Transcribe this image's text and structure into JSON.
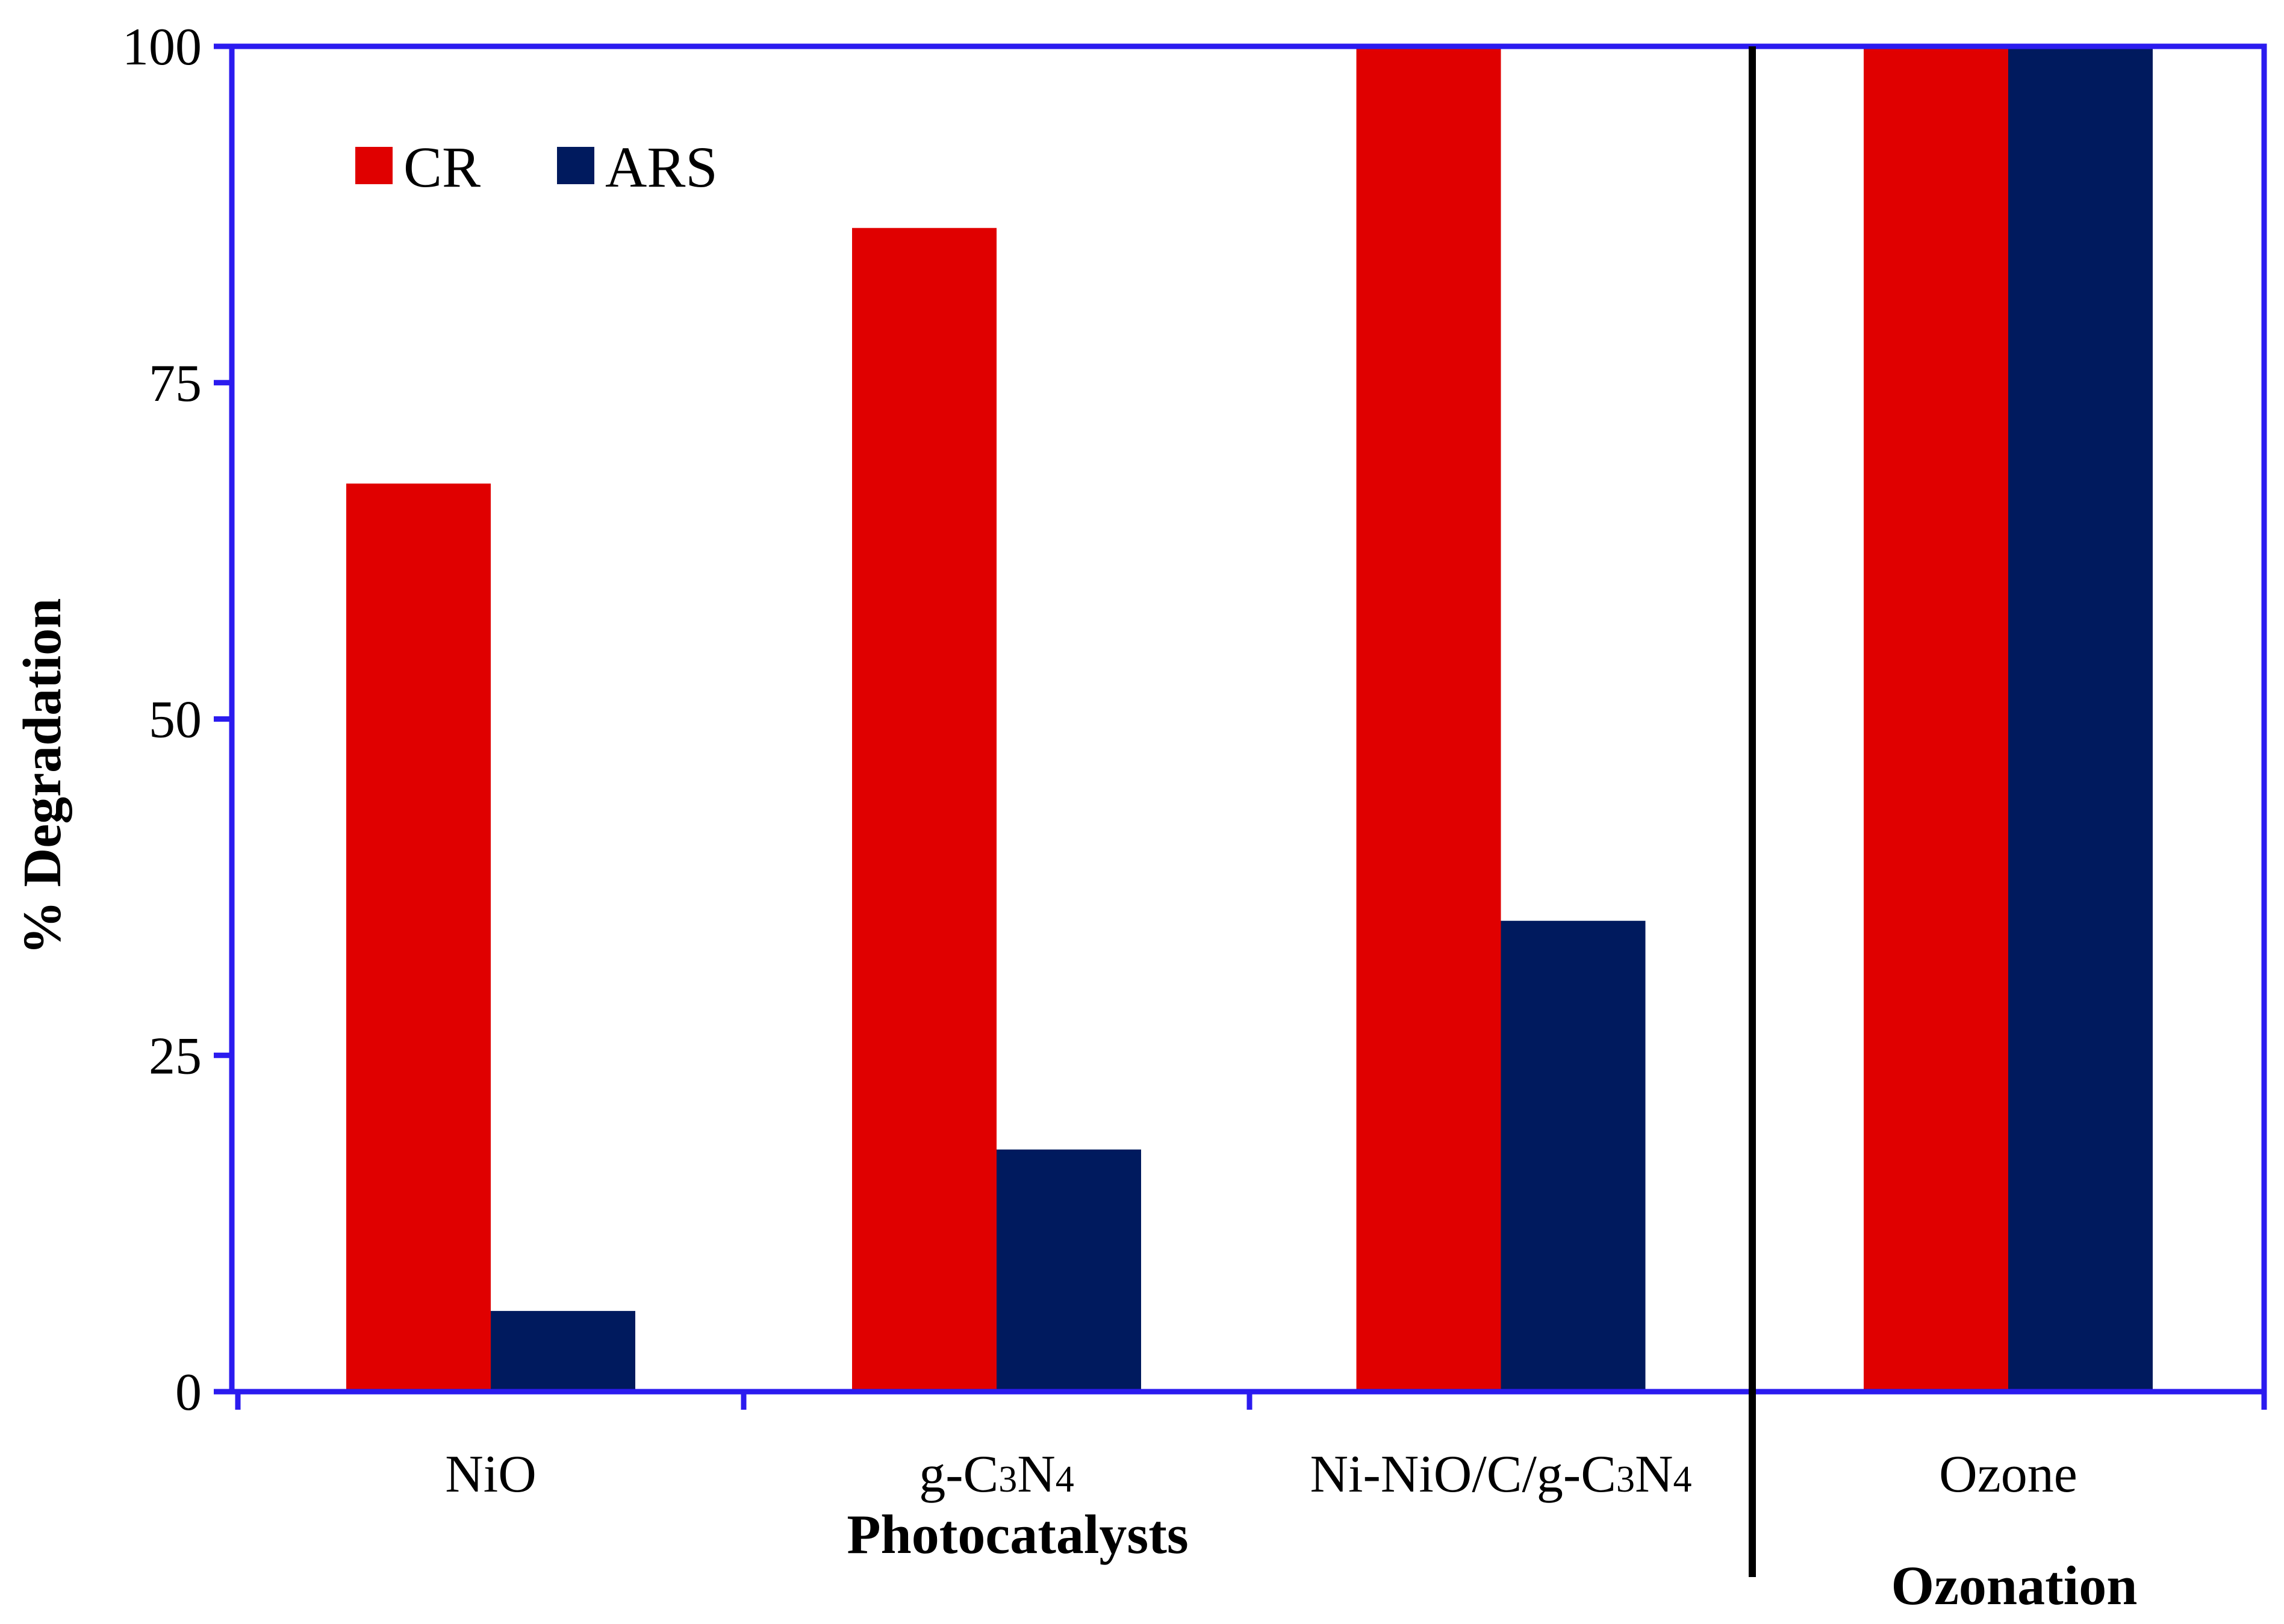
{
  "chart_data": {
    "type": "bar",
    "title": "",
    "xlabel": "",
    "ylabel": "% Degradation",
    "ylim": [
      0,
      100
    ],
    "yticks": [
      "0",
      "25",
      "50",
      "75",
      "100"
    ],
    "categories": [
      "NiO",
      "g-C3N4",
      "Ni-NiO/C/g-C3N4",
      "Ozone"
    ],
    "category_labels": [
      {
        "text": "NiO"
      },
      {
        "text": "g-C",
        "sub1": "3",
        "mid": "N",
        "sub2": "4"
      },
      {
        "text": "Ni-NiO/C/g-C",
        "sub1": "3",
        "mid": "N",
        "sub2": "4"
      },
      {
        "text": "Ozone"
      }
    ],
    "series": [
      {
        "name": "CR",
        "color": "#e00000",
        "values": [
          67.5,
          86.5,
          100,
          100
        ]
      },
      {
        "name": "ARS",
        "color": "#001a5e",
        "values": [
          6,
          18,
          35,
          100
        ]
      }
    ],
    "groups": [
      {
        "label": "Photocatalysts",
        "categories": [
          "NiO",
          "g-C3N4",
          "Ni-NiO/C/g-C3N4"
        ]
      },
      {
        "label": "Ozonation",
        "categories": [
          "Ozone"
        ]
      }
    ],
    "legend": {
      "position": "top-left",
      "entries": [
        "CR",
        "ARS"
      ]
    },
    "grid": false,
    "axis_color": "#2b1bef"
  }
}
